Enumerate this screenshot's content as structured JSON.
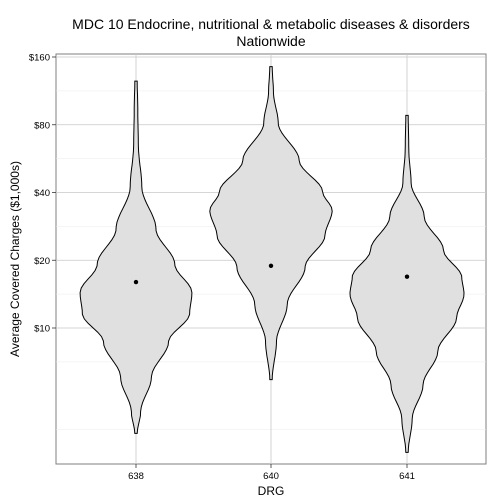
{
  "chart_data": {
    "type": "violin",
    "title": "MDC 10 Endocrine, nutritional & metabolic diseases & disorders",
    "subtitle": "Nationwide",
    "xlabel": "DRG",
    "ylabel": "Average Covered Charges ($1,000s)",
    "y_scale": "log2",
    "ylim": [
      2.7,
      170
    ],
    "y_ticks": [
      10,
      20,
      40,
      80,
      160
    ],
    "y_tick_labels": [
      "$10",
      "$20",
      "$40",
      "$80",
      "$160"
    ],
    "grid": true,
    "categories": [
      "638",
      "640",
      "641"
    ],
    "points": [
      {
        "drg": "638",
        "value": 16.0
      },
      {
        "drg": "640",
        "value": 18.9
      },
      {
        "drg": "641",
        "value": 16.9
      }
    ],
    "ranges": [
      {
        "drg": "638",
        "min": 3.4,
        "max": 125
      },
      {
        "drg": "640",
        "min": 5.9,
        "max": 145
      },
      {
        "drg": "641",
        "min": 2.8,
        "max": 88
      }
    ]
  },
  "colors": {
    "violin_fill": "#e0e0e0",
    "violin_stroke": "#000000",
    "grid_major": "#c8c8c8",
    "grid_minor": "#ebebeb",
    "point": "#000000"
  }
}
